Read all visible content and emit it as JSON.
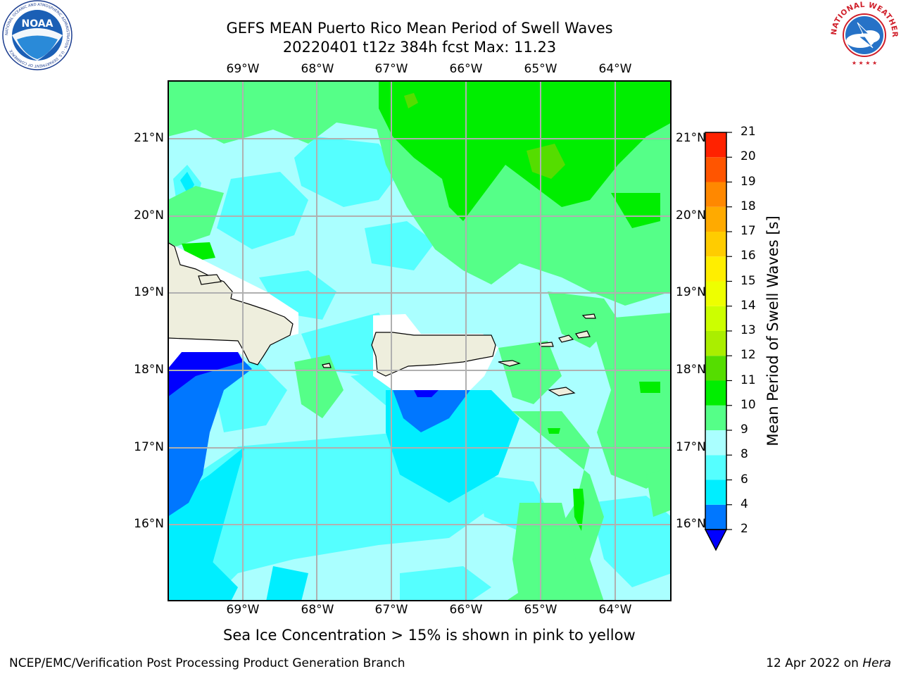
{
  "title": {
    "line1": "GEFS MEAN Puerto Rico Mean Period of Swell Waves",
    "line2": "20220401 t12z 384h fcst   Max: 11.23"
  },
  "axes": {
    "lon_ticks": [
      "69°W",
      "68°W",
      "67°W",
      "66°W",
      "65°W",
      "64°W"
    ],
    "lat_ticks": [
      "21°N",
      "20°N",
      "19°N",
      "18°N",
      "17°N",
      "16°N"
    ]
  },
  "colorbar": {
    "title": "Mean Period of Swell Waves [s]",
    "levels": [
      "2",
      "4",
      "6",
      "8",
      "9",
      "10",
      "11",
      "12",
      "13",
      "14",
      "15",
      "16",
      "17",
      "18",
      "19",
      "20",
      "21"
    ],
    "colors": [
      "#0000ff",
      "#0077ff",
      "#00eeff",
      "#55ffff",
      "#aaffff",
      "#55ff88",
      "#00ee00",
      "#55dd00",
      "#aaee00",
      "#ccff00",
      "#eeff00",
      "#ffee00",
      "#ffcc00",
      "#ffaa00",
      "#ff8800",
      "#ff5500",
      "#ff2200",
      "#ff0000"
    ]
  },
  "map_colors": {
    "ocean_light": "#aaffff",
    "ocean_mid": "#55ffff",
    "ocean_cyan": "#00eeff",
    "blue": "#0077ff",
    "deep_blue": "#0000ff",
    "green_light": "#55ff88",
    "green": "#00ee00",
    "land": "#eeeedd",
    "grid": "#b0b0b0"
  },
  "ice_note": "Sea Ice Concentration > 15% is shown in pink to yellow",
  "footer": {
    "left": "NCEP/EMC/Verification Post Processing Product Generation Branch",
    "right_date": "12 Apr 2022 on",
    "right_machine": "Hera"
  },
  "logos": {
    "noaa_text": "NOAA",
    "noaa_ring": "NATIONAL OCEANIC AND ATMOSPHERIC ADMINISTRATION · U.S. DEPARTMENT OF COMMERCE",
    "nws_ring": "NATIONAL WEATHER SERVICE"
  }
}
